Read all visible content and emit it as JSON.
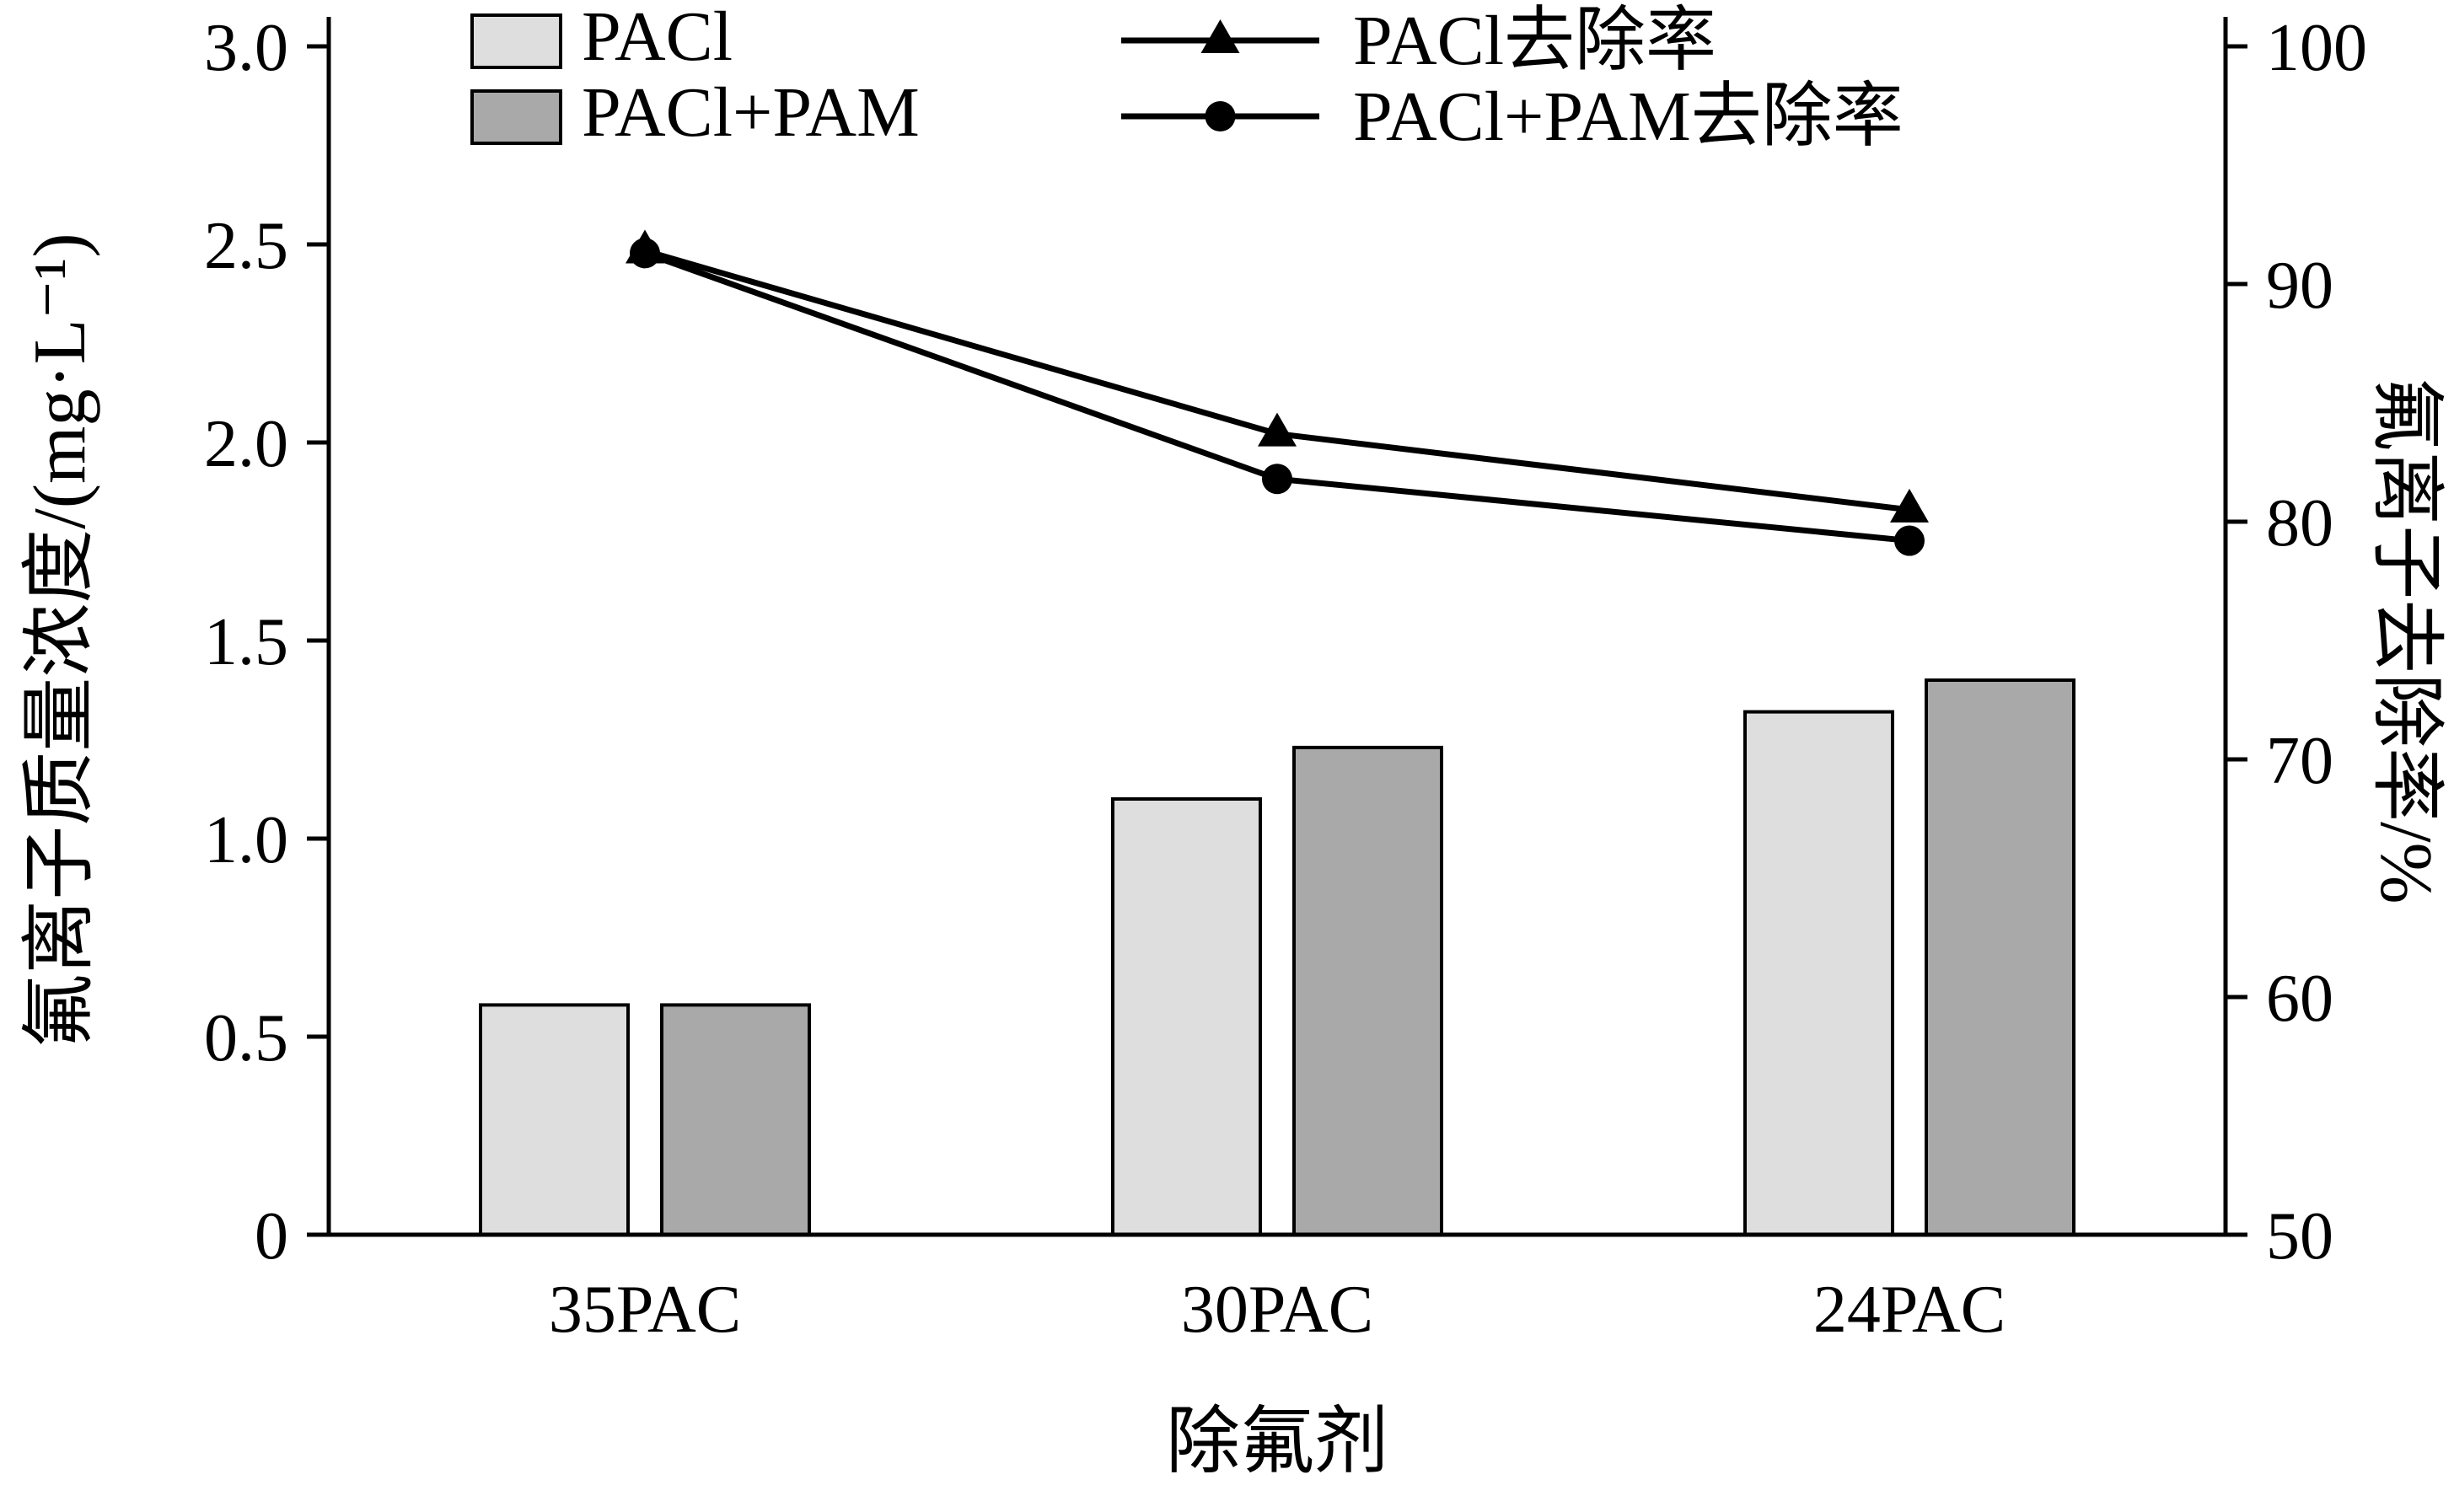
{
  "figure": {
    "background": "#ffffff",
    "axis_color": "#000000"
  },
  "chart_data": {
    "type": "composite-bar-line",
    "title": "",
    "xlabel": "除氟剂",
    "categories": [
      "35PAC",
      "30PAC",
      "24PAC"
    ],
    "left_axis": {
      "label": "氟离子质量浓度/(mg·L⁻¹)",
      "min": 0,
      "max": 3.0,
      "ticks": [
        0,
        0.5,
        1.0,
        1.5,
        2.0,
        2.5,
        3.0
      ],
      "tick_labels": [
        "0",
        "0.5",
        "1.0",
        "1.5",
        "2.0",
        "2.5",
        "3.0"
      ]
    },
    "right_axis": {
      "label": "氟离子去除率/%",
      "min": 50,
      "max": 100,
      "ticks": [
        50,
        60,
        70,
        80,
        90,
        100
      ],
      "tick_labels": [
        "50",
        "60",
        "70",
        "80",
        "90",
        "100"
      ]
    },
    "bar_series": [
      {
        "name": "PACl",
        "axis": "left",
        "fill": "#dedede",
        "stroke": "#000000",
        "values": [
          0.58,
          1.1,
          1.32
        ]
      },
      {
        "name": "PACl+PAM",
        "axis": "left",
        "fill": "#a9a9a9",
        "stroke": "#000000",
        "values": [
          0.58,
          1.23,
          1.4
        ]
      }
    ],
    "line_series": [
      {
        "name": "PACl去除率",
        "axis": "right",
        "marker": "triangle",
        "color": "#000000",
        "values": [
          91.4,
          83.7,
          80.5
        ]
      },
      {
        "name": "PACl+PAM去除率",
        "axis": "right",
        "marker": "circle",
        "color": "#000000",
        "values": [
          91.3,
          81.8,
          79.2
        ]
      }
    ],
    "legend": {
      "position": "top-inside",
      "grid": "off"
    }
  }
}
